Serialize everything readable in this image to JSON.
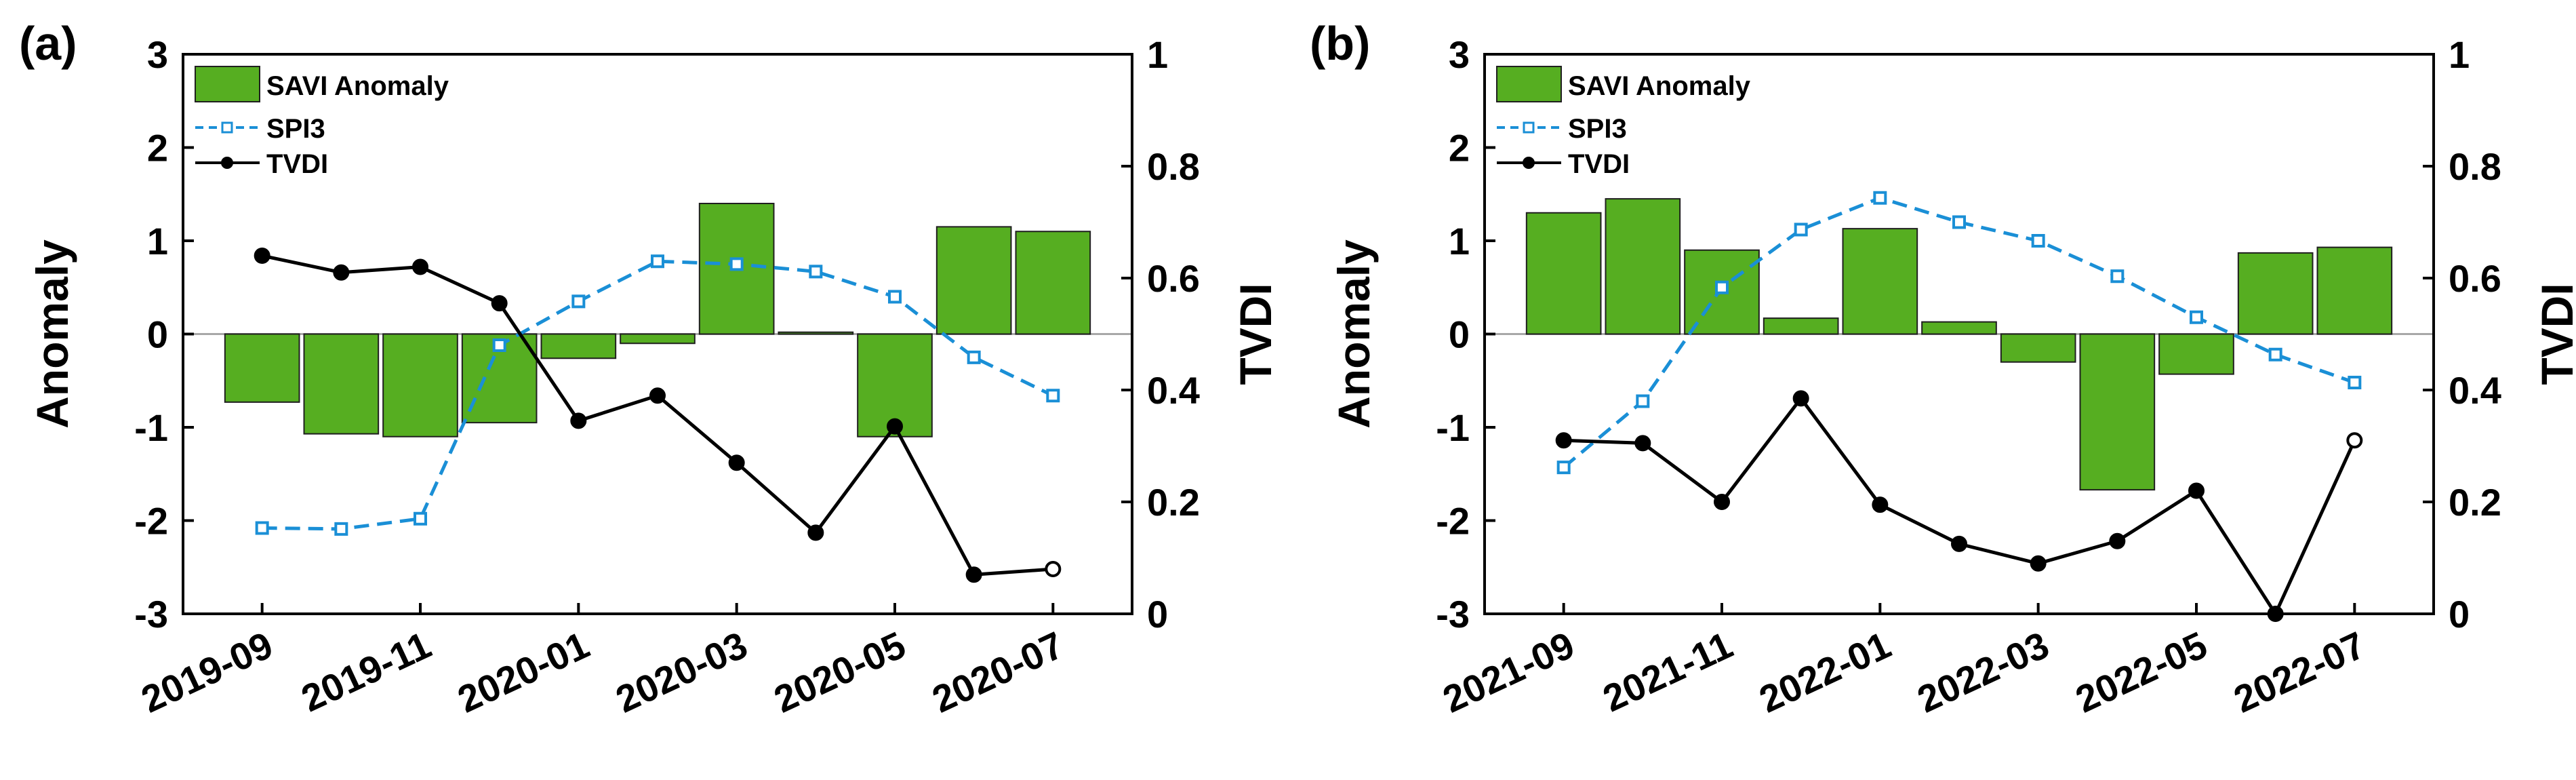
{
  "chart_data": [
    {
      "type": "bar+line",
      "panel_label": "(a)",
      "categories": [
        "2019-09",
        "2019-10",
        "2019-11",
        "2019-12",
        "2020-01",
        "2020-02",
        "2020-03",
        "2020-04",
        "2020-05",
        "2020-06",
        "2020-07"
      ],
      "x_tick_labels": [
        "2019-09",
        "2019-11",
        "2020-01",
        "2020-03",
        "2020-05",
        "2020-07"
      ],
      "series": [
        {
          "name": "SAVI Anomaly",
          "kind": "bar",
          "axis": "left",
          "color": "#56AE21",
          "values": [
            -0.73,
            -1.07,
            -1.1,
            -0.95,
            -0.26,
            -0.1,
            1.4,
            0.02,
            -1.1,
            1.15,
            1.1
          ]
        },
        {
          "name": "SPI3",
          "kind": "line",
          "style": "dashed",
          "marker": "open-square",
          "axis": "left",
          "color": "#1A8FD6",
          "values": [
            -2.08,
            -2.09,
            -1.98,
            -0.12,
            0.35,
            0.78,
            0.75,
            0.67,
            0.4,
            -0.25,
            -0.66
          ]
        },
        {
          "name": "TVDI",
          "kind": "line",
          "style": "solid",
          "marker": "filled-circle",
          "axis": "right",
          "color": "#000000",
          "values": [
            0.64,
            0.61,
            0.62,
            0.555,
            0.345,
            0.39,
            0.27,
            0.145,
            0.335,
            0.07,
            0.08
          ]
        }
      ],
      "ylabel": "Anomaly",
      "y2label": "TVDI",
      "ylim": [
        -3,
        3
      ],
      "y2lim": [
        0,
        1
      ],
      "y_ticks": [
        "3",
        "2",
        "1",
        "0",
        "-1",
        "-2",
        "-3"
      ],
      "y2_ticks": [
        "1",
        "0.8",
        "0.6",
        "0.4",
        "0.2",
        "0"
      ],
      "legend_position": "top-left"
    },
    {
      "type": "bar+line",
      "panel_label": "(b)",
      "categories": [
        "2021-09",
        "2021-10",
        "2021-11",
        "2021-12",
        "2022-01",
        "2022-02",
        "2022-03",
        "2022-04",
        "2022-05",
        "2022-06",
        "2022-07"
      ],
      "x_tick_labels": [
        "2021-09",
        "2021-11",
        "2022-01",
        "2022-03",
        "2022-05",
        "2022-07"
      ],
      "series": [
        {
          "name": "SAVI Anomaly",
          "kind": "bar",
          "axis": "left",
          "color": "#56AE21",
          "values": [
            1.3,
            1.45,
            0.9,
            0.17,
            1.13,
            0.13,
            -0.3,
            -1.67,
            -0.43,
            0.87,
            0.93
          ]
        },
        {
          "name": "SPI3",
          "kind": "line",
          "style": "dashed",
          "marker": "open-square",
          "axis": "left",
          "color": "#1A8FD6",
          "values": [
            -1.43,
            -0.72,
            0.5,
            1.12,
            1.46,
            1.2,
            1.0,
            0.62,
            0.18,
            -0.22,
            -0.52
          ]
        },
        {
          "name": "TVDI",
          "kind": "line",
          "style": "solid",
          "marker": "filled-circle",
          "axis": "right",
          "color": "#000000",
          "values": [
            0.31,
            0.305,
            0.2,
            0.385,
            0.195,
            0.125,
            0.09,
            0.13,
            0.22,
            0.0,
            0.31
          ]
        }
      ],
      "ylabel": "Anomaly",
      "y2label": "TVDI",
      "ylim": [
        -3,
        3
      ],
      "y2lim": [
        0,
        1
      ],
      "y_ticks": [
        "3",
        "2",
        "1",
        "0",
        "-1",
        "-2",
        "-3"
      ],
      "y2_ticks": [
        "1",
        "0.8",
        "0.6",
        "0.4",
        "0.2",
        "0"
      ],
      "legend_position": "top-left"
    }
  ]
}
